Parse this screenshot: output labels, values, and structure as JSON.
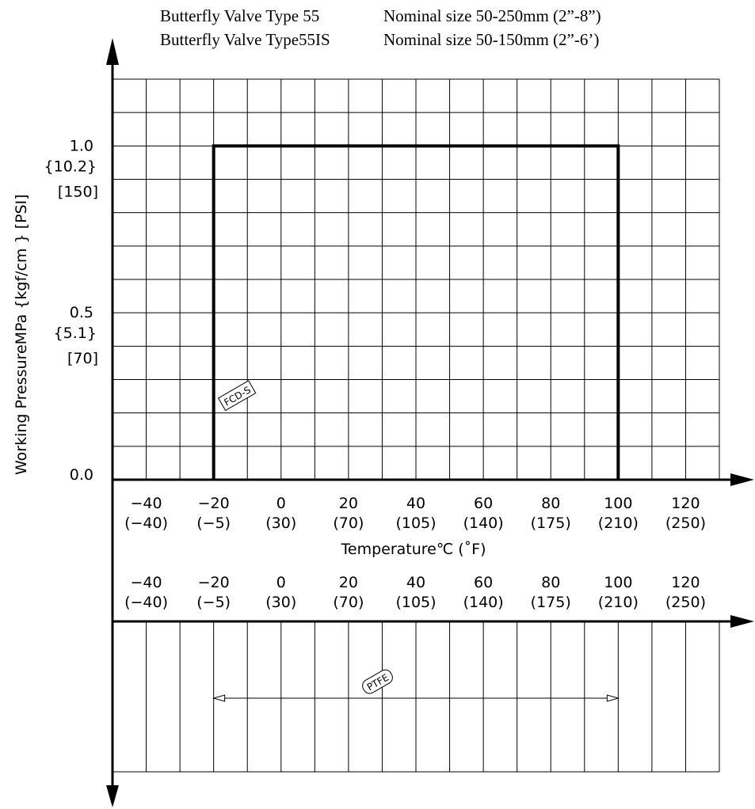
{
  "title_lines": [
    {
      "left": "Butterfly Valve Type 55",
      "right": "Nominal size 50-250mm (2”-8”)"
    },
    {
      "left": "Butterfly Valve Type55IS",
      "right": "Nominal size 50-150mm (2”-6’)"
    }
  ],
  "chart_data": {
    "type": "area",
    "x_unit_label": "Temperature℃ (˚F)",
    "x_ticks": [
      {
        "c": -40,
        "f": "(−40)",
        "label": "−40"
      },
      {
        "c": -20,
        "f": "(−5)",
        "label": "−20"
      },
      {
        "c": 0,
        "f": "(30)",
        "label": "0"
      },
      {
        "c": 20,
        "f": "(70)",
        "label": "20"
      },
      {
        "c": 40,
        "f": "(105)",
        "label": "40"
      },
      {
        "c": 60,
        "f": "(140)",
        "label": "60"
      },
      {
        "c": 80,
        "f": "(175)",
        "label": "80"
      },
      {
        "c": 100,
        "f": "(210)",
        "label": "100"
      },
      {
        "c": 120,
        "f": "(250)",
        "label": "120"
      }
    ],
    "xlim": [
      -50,
      130
    ],
    "ylabel": "Working PressureMPa {kgf/cm } [PSI]",
    "y_ticks": [
      {
        "v": 1.0,
        "label": "1.0",
        "kgf": "{10.2}",
        "psi": "[150]"
      },
      {
        "v": 0.5,
        "label": "0.5",
        "kgf": "{5.1}",
        "psi": "[70]"
      },
      {
        "v": 0.0,
        "label": "0.0"
      }
    ],
    "ylim": [
      0,
      1.2
    ],
    "grid": true,
    "series": [
      {
        "name": "FCD-S",
        "points": [
          [
            -20,
            0
          ],
          [
            -20,
            1.0
          ],
          [
            100,
            1.0
          ],
          [
            100,
            0
          ]
        ]
      }
    ],
    "range_bar": {
      "name": "PTFE",
      "from": -20,
      "to": 100
    }
  }
}
